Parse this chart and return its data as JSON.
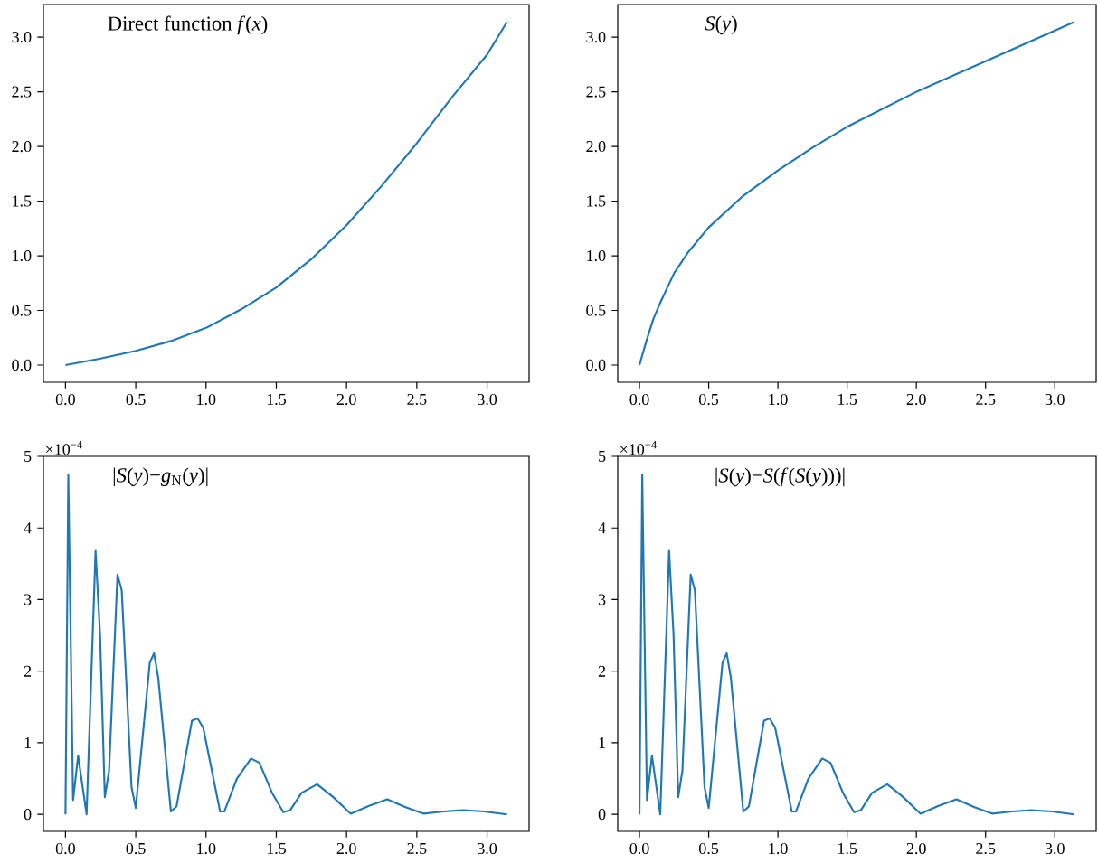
{
  "chart_data": [
    {
      "type": "line",
      "title": "Direct function *f*(*x*)",
      "x": [
        0,
        0.25,
        0.5,
        0.75,
        1.0,
        1.25,
        1.5,
        1.75,
        2.0,
        2.25,
        2.5,
        2.75,
        3.0,
        3.1416
      ],
      "series": [
        {
          "color": "#1f77b4",
          "values": [
            0,
            0.06,
            0.13,
            0.22,
            0.34,
            0.51,
            0.71,
            0.97,
            1.28,
            1.64,
            2.03,
            2.45,
            2.84,
            3.14
          ]
        }
      ],
      "xlim": [
        -0.157,
        3.299
      ],
      "ylim": [
        -0.157,
        3.299
      ],
      "xticks": [
        {
          "value": 0,
          "label": "0.0"
        },
        {
          "value": 0.5,
          "label": "0.5"
        },
        {
          "value": 1,
          "label": "1.0"
        },
        {
          "value": 1.5,
          "label": "1.5"
        },
        {
          "value": 2,
          "label": "2.0"
        },
        {
          "value": 2.5,
          "label": "2.5"
        },
        {
          "value": 3,
          "label": "3.0"
        }
      ],
      "yticks": [
        {
          "value": 0,
          "label": "0.0"
        },
        {
          "value": 0.5,
          "label": "0.5"
        },
        {
          "value": 1,
          "label": "1.0"
        },
        {
          "value": 1.5,
          "label": "1.5"
        },
        {
          "value": 2,
          "label": "2.0"
        },
        {
          "value": 2.5,
          "label": "2.5"
        },
        {
          "value": 3,
          "label": "3.0"
        }
      ]
    },
    {
      "type": "line",
      "title": "*S*(*y*)",
      "x": [
        0,
        0.02,
        0.05,
        0.1,
        0.15,
        0.25,
        0.35,
        0.5,
        0.75,
        1.0,
        1.25,
        1.5,
        2.0,
        2.5,
        3.1416
      ],
      "series": [
        {
          "color": "#1f77b4",
          "values": [
            0,
            0.09,
            0.22,
            0.42,
            0.57,
            0.84,
            1.03,
            1.26,
            1.55,
            1.78,
            1.99,
            2.18,
            2.5,
            2.78,
            3.14
          ]
        }
      ],
      "xlim": [
        -0.157,
        3.299
      ],
      "ylim": [
        -0.157,
        3.299
      ],
      "xticks": [
        {
          "value": 0,
          "label": "0.0"
        },
        {
          "value": 0.5,
          "label": "0.5"
        },
        {
          "value": 1,
          "label": "1.0"
        },
        {
          "value": 1.5,
          "label": "1.5"
        },
        {
          "value": 2,
          "label": "2.0"
        },
        {
          "value": 2.5,
          "label": "2.5"
        },
        {
          "value": 3,
          "label": "3.0"
        }
      ],
      "yticks": [
        {
          "value": 0,
          "label": "0.0"
        },
        {
          "value": 0.5,
          "label": "0.5"
        },
        {
          "value": 1,
          "label": "1.0"
        },
        {
          "value": 1.5,
          "label": "1.5"
        },
        {
          "value": 2,
          "label": "2.0"
        },
        {
          "value": 2.5,
          "label": "2.5"
        },
        {
          "value": 3,
          "label": "3.0"
        }
      ]
    },
    {
      "type": "line",
      "title": "|*S*(*y*)−*g*$_{N}$(*y*)|",
      "annotations": [
        "×10$^{−4}$"
      ],
      "x": [
        0,
        0.02,
        0.054,
        0.09,
        0.15,
        0.214,
        0.246,
        0.28,
        0.31,
        0.37,
        0.4,
        0.47,
        0.5,
        0.6,
        0.63,
        0.66,
        0.75,
        0.79,
        0.9,
        0.94,
        0.98,
        1.1,
        1.13,
        1.22,
        1.32,
        1.38,
        1.47,
        1.55,
        1.6,
        1.68,
        1.79,
        1.9,
        2.03,
        2.16,
        2.29,
        2.42,
        2.55,
        2.69,
        2.83,
        2.98,
        3.1416
      ],
      "series": [
        {
          "color": "#1f77b4",
          "values": [
            0,
            4.74,
            0.2,
            0.82,
            0,
            3.68,
            2.51,
            0.24,
            0.61,
            3.35,
            3.13,
            0.38,
            0.09,
            2.12,
            2.25,
            1.91,
            0.04,
            0.11,
            1.31,
            1.34,
            1.21,
            0.04,
            0.04,
            0.5,
            0.78,
            0.72,
            0.3,
            0.03,
            0.06,
            0.3,
            0.42,
            0.25,
            0.01,
            0.12,
            0.21,
            0.1,
            0.01,
            0.04,
            0.06,
            0.04,
            0
          ]
        }
      ],
      "xlim": [
        -0.157,
        3.299
      ],
      "ylim": [
        -0.237,
        5
      ],
      "xticks": [
        {
          "value": 0,
          "label": "0.0"
        },
        {
          "value": 0.5,
          "label": "0.5"
        },
        {
          "value": 1,
          "label": "1.0"
        },
        {
          "value": 1.5,
          "label": "1.5"
        },
        {
          "value": 2,
          "label": "2.0"
        },
        {
          "value": 2.5,
          "label": "2.5"
        },
        {
          "value": 3,
          "label": "3.0"
        }
      ],
      "yticks": [
        0,
        1,
        2,
        3,
        4,
        5
      ]
    },
    {
      "type": "line",
      "title": "|*S*(*y*)−*S*(*f*(*S*(*y*)))|",
      "annotations": [
        "×10$^{−4}$"
      ],
      "x": [
        0,
        0.02,
        0.054,
        0.09,
        0.15,
        0.214,
        0.246,
        0.28,
        0.31,
        0.37,
        0.4,
        0.47,
        0.5,
        0.6,
        0.63,
        0.66,
        0.75,
        0.79,
        0.9,
        0.94,
        0.98,
        1.1,
        1.13,
        1.22,
        1.32,
        1.38,
        1.47,
        1.55,
        1.6,
        1.68,
        1.79,
        1.9,
        2.03,
        2.16,
        2.29,
        2.42,
        2.55,
        2.69,
        2.83,
        2.98,
        3.1416
      ],
      "series": [
        {
          "color": "#1f77b4",
          "values": [
            0,
            4.74,
            0.2,
            0.82,
            0,
            3.68,
            2.51,
            0.24,
            0.61,
            3.35,
            3.13,
            0.38,
            0.09,
            2.12,
            2.25,
            1.91,
            0.04,
            0.11,
            1.31,
            1.34,
            1.21,
            0.04,
            0.04,
            0.5,
            0.78,
            0.72,
            0.3,
            0.03,
            0.06,
            0.3,
            0.42,
            0.25,
            0.01,
            0.12,
            0.21,
            0.1,
            0.01,
            0.04,
            0.06,
            0.04,
            0
          ]
        }
      ],
      "xlim": [
        -0.157,
        3.299
      ],
      "ylim": [
        -0.237,
        5
      ],
      "xticks": [
        {
          "value": 0,
          "label": "0.0"
        },
        {
          "value": 0.5,
          "label": "0.5"
        },
        {
          "value": 1,
          "label": "1.0"
        },
        {
          "value": 1.5,
          "label": "1.5"
        },
        {
          "value": 2,
          "label": "2.0"
        },
        {
          "value": 2.5,
          "label": "2.5"
        },
        {
          "value": 3,
          "label": "3.0"
        }
      ],
      "yticks": [
        0,
        1,
        2,
        3,
        4,
        5
      ]
    }
  ]
}
